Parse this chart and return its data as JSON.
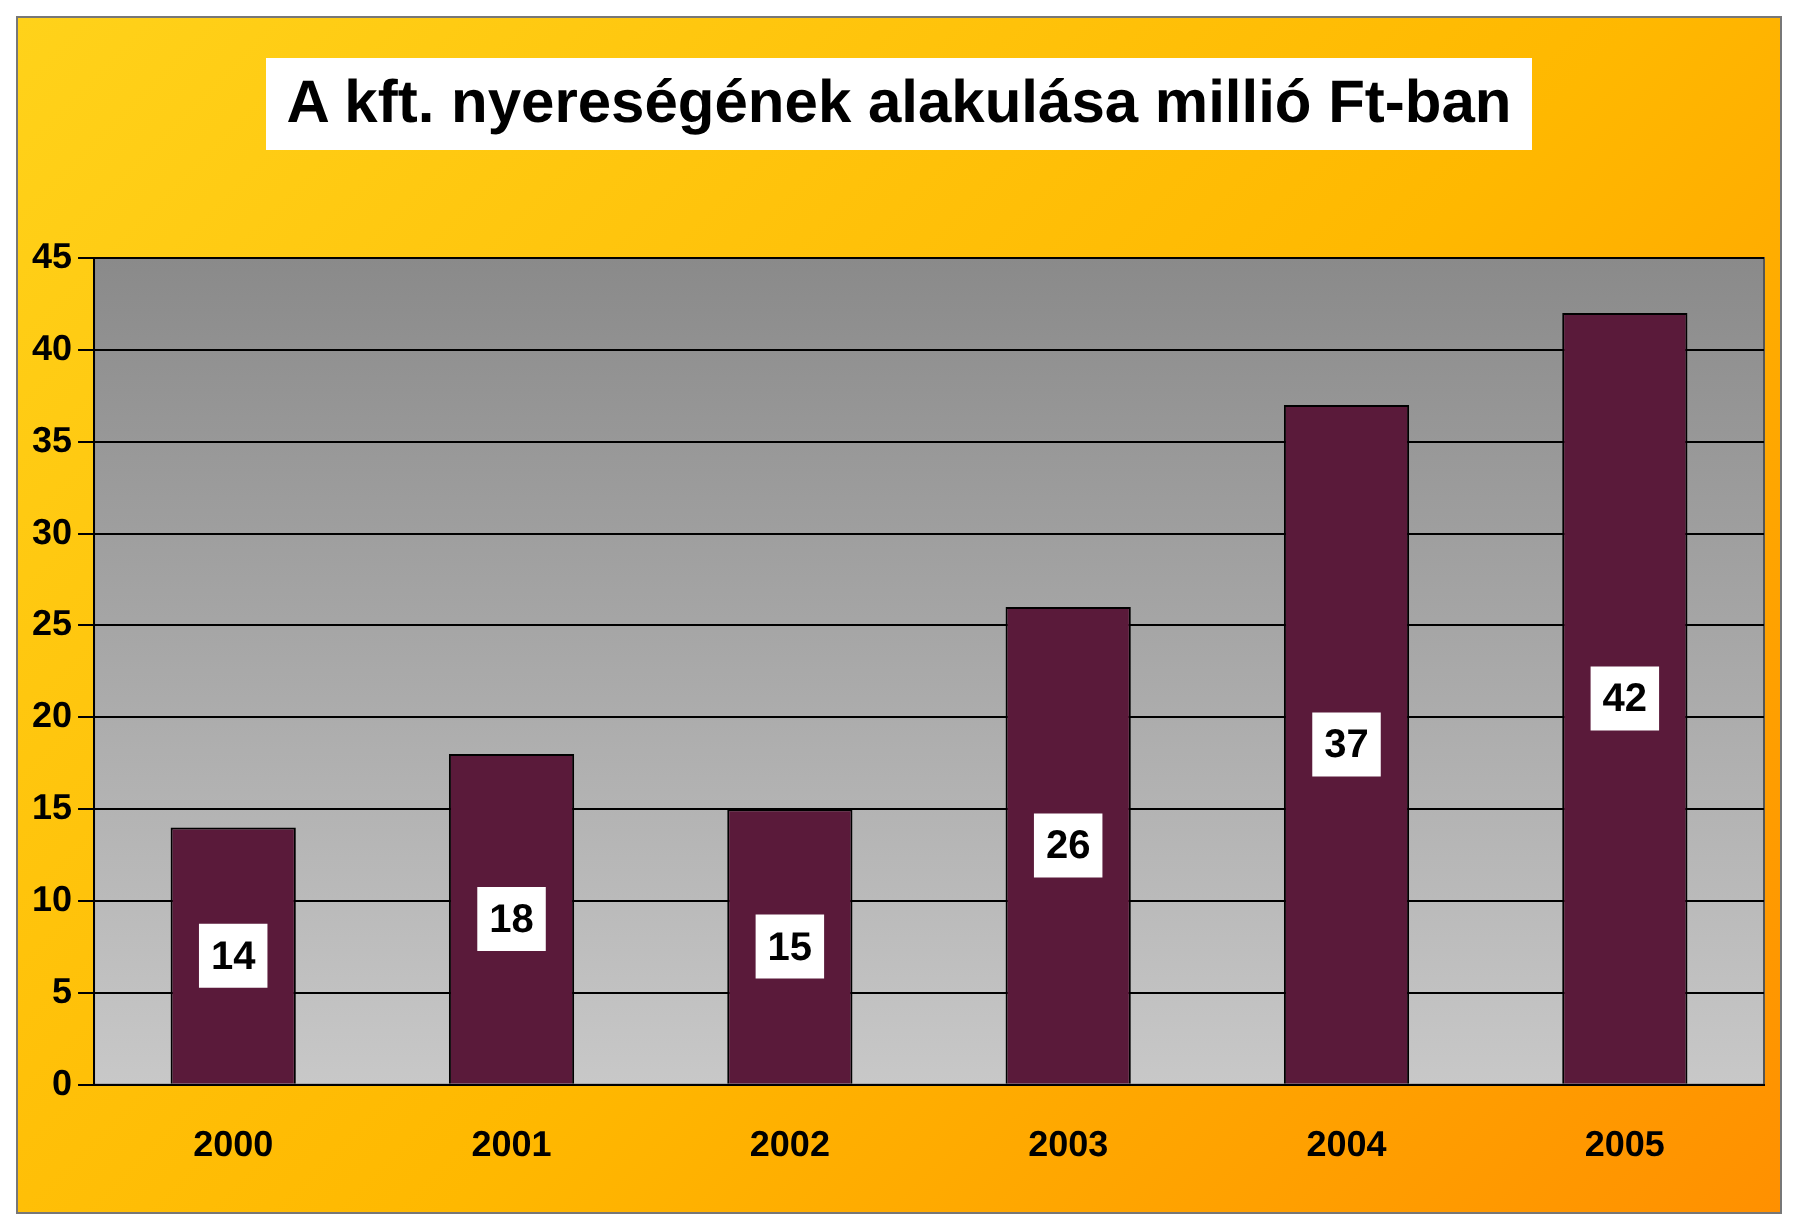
{
  "chart_data": {
    "type": "bar",
    "title": "A kft. nyereségének alakulása millió Ft-ban",
    "categories": [
      "2000",
      "2001",
      "2002",
      "2003",
      "2004",
      "2005"
    ],
    "values": [
      14,
      18,
      15,
      26,
      37,
      42
    ],
    "color": "#5a1a3a",
    "ylim": [
      0,
      45
    ],
    "yticks": [
      0,
      5,
      10,
      15,
      20,
      25,
      30,
      35,
      40,
      45
    ],
    "grid": "y",
    "legend": false,
    "data_labels": true
  }
}
